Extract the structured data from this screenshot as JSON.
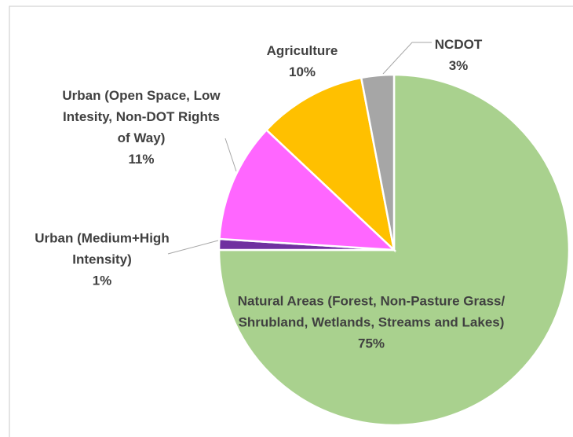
{
  "chart_data": {
    "type": "pie",
    "categories": [
      "Natural Areas (Forest, Non-Pasture Grass/ Shrubland, Wetlands, Streams and Lakes)",
      "Urban (Medium+High Intensity)",
      "Urban (Open Space, Low Intesity, Non-DOT Rights of Way)",
      "Agriculture",
      "NCDOT"
    ],
    "values": [
      75,
      1,
      11,
      10,
      3
    ],
    "value_labels": [
      "75%",
      "1%",
      "11%",
      "10%",
      "3%"
    ],
    "colors": [
      "#a9d18e",
      "#7030a0",
      "#ff66ff",
      "#ffc000",
      "#a6a6a6"
    ]
  }
}
